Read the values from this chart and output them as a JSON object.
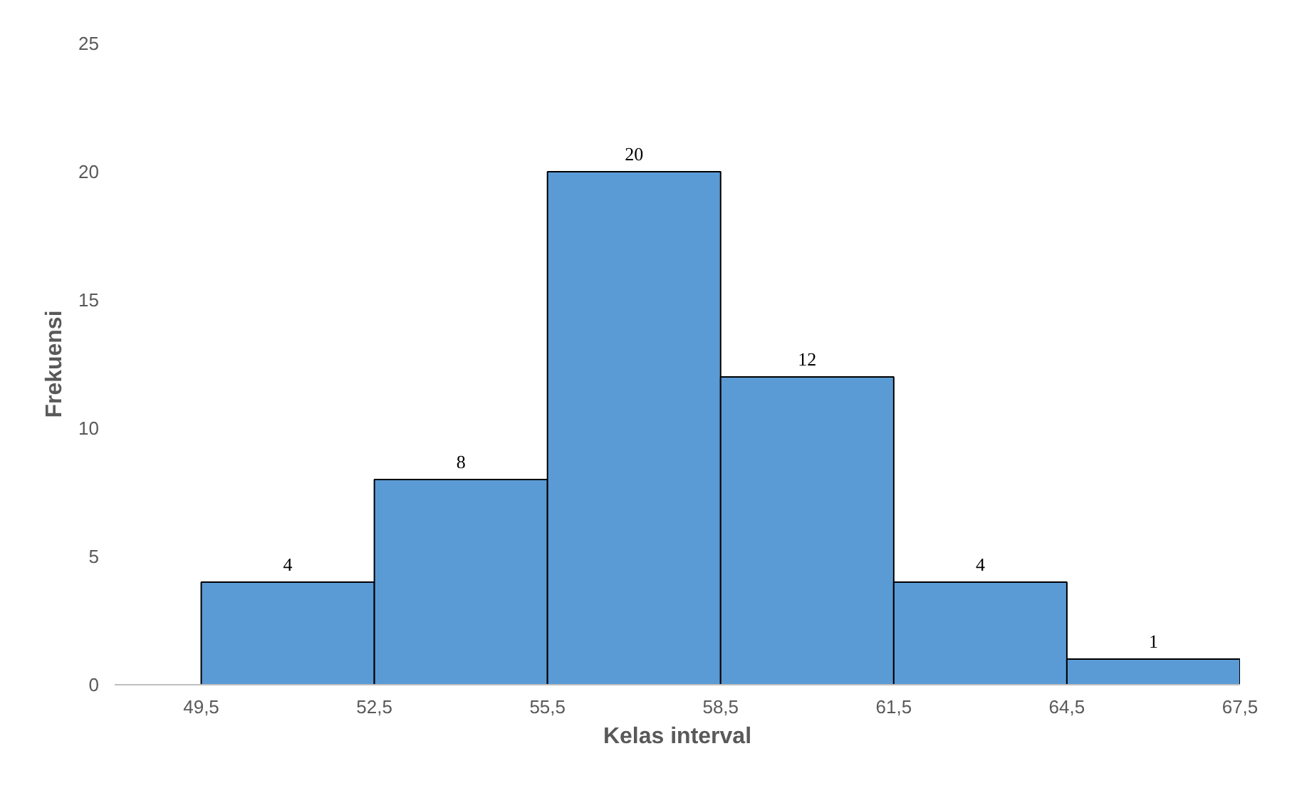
{
  "chart_data": {
    "type": "histogram",
    "xlabel": "Kelas interval",
    "ylabel": "Frekuensi",
    "bins": [
      49.5,
      52.5,
      55.5,
      58.5,
      61.5,
      64.5,
      67.5
    ],
    "values": [
      4,
      8,
      20,
      12,
      4,
      1
    ],
    "color": "#5b9bd5",
    "data_labels": true,
    "xlim": [
      48,
      67.5
    ],
    "xticks": [
      {
        "value": 49.5,
        "label": "49,5"
      },
      {
        "value": 52.5,
        "label": "52,5"
      },
      {
        "value": 55.5,
        "label": "55,5"
      },
      {
        "value": 58.5,
        "label": "58,5"
      },
      {
        "value": 61.5,
        "label": "61,5"
      },
      {
        "value": 64.5,
        "label": "64,5"
      },
      {
        "value": 67.5,
        "label": "67,5"
      }
    ],
    "ylim": [
      0,
      25
    ],
    "yticks": [
      0,
      5,
      10,
      15,
      20,
      25
    ],
    "grid": false
  }
}
